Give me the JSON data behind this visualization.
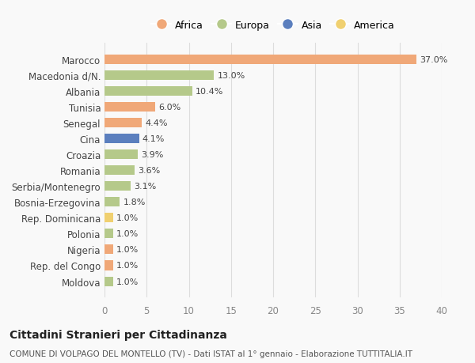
{
  "categories": [
    "Marocco",
    "Macedonia d/N.",
    "Albania",
    "Tunisia",
    "Senegal",
    "Cina",
    "Croazia",
    "Romania",
    "Serbia/Montenegro",
    "Bosnia-Erzegovina",
    "Rep. Dominicana",
    "Polonia",
    "Nigeria",
    "Rep. del Congo",
    "Moldova"
  ],
  "values": [
    37.0,
    13.0,
    10.4,
    6.0,
    4.4,
    4.1,
    3.9,
    3.6,
    3.1,
    1.8,
    1.0,
    1.0,
    1.0,
    1.0,
    1.0
  ],
  "continents": [
    "Africa",
    "Europa",
    "Europa",
    "Africa",
    "Africa",
    "Asia",
    "Europa",
    "Europa",
    "Europa",
    "Europa",
    "America",
    "Europa",
    "Africa",
    "Africa",
    "Europa"
  ],
  "colors": {
    "Africa": "#F0A878",
    "Europa": "#B5C98A",
    "Asia": "#5B7FBE",
    "America": "#F0D070"
  },
  "legend_order": [
    "Africa",
    "Europa",
    "Asia",
    "America"
  ],
  "xlim": [
    0,
    40
  ],
  "xticks": [
    0,
    5,
    10,
    15,
    20,
    25,
    30,
    35,
    40
  ],
  "title": "Cittadini Stranieri per Cittadinanza",
  "subtitle": "COMUNE DI VOLPAGO DEL MONTELLO (TV) - Dati ISTAT al 1° gennaio - Elaborazione TUTTITALIA.IT",
  "bg_color": "#f9f9f9",
  "grid_color": "#dddddd"
}
